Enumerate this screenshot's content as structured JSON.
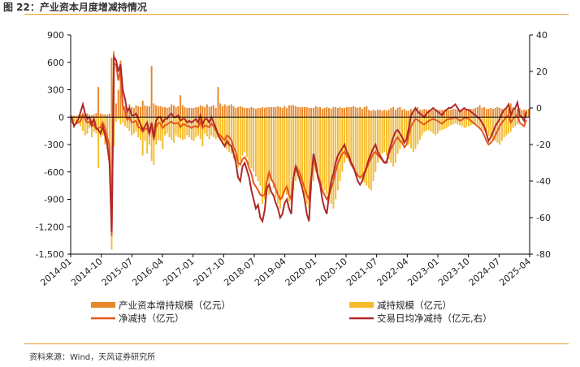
{
  "title": "图 22：产业资本月度增减持情况",
  "source": "资料来源：Wind，天风证券研究所",
  "colors": {
    "increase_bar": "#e8872a",
    "decrease_bar": "#f5bb2a",
    "net_line": "#e4571e",
    "daily_line": "#b0282a",
    "rule": "#e89a2a"
  },
  "chart_data": {
    "type": "bar",
    "x_tick_labels": [
      "2014-01",
      "2014-10",
      "2015-07",
      "2016-04",
      "2017-01",
      "2017-10",
      "2018-07",
      "2019-04",
      "2020-01",
      "2020-10",
      "2021-07",
      "2022-04",
      "2023-01",
      "2023-10",
      "2024-07",
      "2025-04"
    ],
    "y_left": {
      "lim": [
        -1500,
        900
      ],
      "ticks": [
        "900",
        "600",
        "300",
        "0",
        "-300",
        "-600",
        "-900",
        "-1,200",
        "-1,500"
      ]
    },
    "y_right": {
      "lim": [
        -80,
        40
      ],
      "ticks": [
        "40",
        "20",
        "0",
        "-20",
        "-40",
        "-60",
        "-80"
      ]
    },
    "legend": [
      "产业资本增持规模（亿元）",
      "减持规模（亿元）",
      "净减持（亿元）",
      "交易日均净减持（亿元,右）"
    ],
    "series": [
      {
        "name": "产业资本增持规模（亿元）",
        "axis": "left",
        "values": [
          20,
          15,
          15,
          20,
          25,
          15,
          35,
          40,
          25,
          20,
          30,
          45,
          330,
          40,
          30,
          30,
          25,
          40,
          650,
          720,
          150,
          300,
          620,
          160,
          120,
          100,
          140,
          110,
          100,
          130,
          120,
          110,
          180,
          130,
          120,
          120,
          560,
          150,
          130,
          120,
          120,
          110,
          110,
          100,
          110,
          140,
          130,
          110,
          120,
          240,
          130,
          110,
          100,
          100,
          100,
          100,
          110,
          110,
          130,
          120,
          110,
          140,
          110,
          120,
          130,
          100,
          330,
          150,
          120,
          140,
          120,
          130,
          140,
          120,
          100,
          110,
          120,
          110,
          100,
          100,
          100,
          110,
          100,
          90,
          100,
          100,
          110,
          100,
          110,
          110,
          110,
          110,
          110,
          120,
          110,
          100,
          120,
          100,
          130,
          130,
          130,
          120,
          110,
          110,
          110,
          110,
          110,
          100,
          100,
          100,
          120,
          110,
          110,
          90,
          100,
          110,
          100,
          90,
          110,
          110,
          100,
          110,
          100,
          100,
          110,
          110,
          110,
          120,
          110,
          100,
          110,
          90,
          110,
          120,
          80,
          70,
          80,
          70,
          80,
          80,
          70,
          80,
          70,
          80,
          100,
          110,
          80,
          100,
          110,
          80,
          90,
          70,
          70,
          90,
          80,
          80,
          110,
          80,
          80,
          90,
          80,
          80,
          80,
          80,
          80,
          80,
          80,
          80,
          80,
          80,
          80,
          80,
          90,
          90,
          80,
          80,
          80,
          80,
          80,
          80,
          90,
          90,
          100,
          110,
          130,
          100,
          110,
          90,
          90,
          100,
          90,
          100,
          110,
          100,
          90,
          90,
          100,
          90,
          150,
          110,
          90,
          90,
          100,
          80,
          80,
          80,
          90
        ]
      },
      {
        "name": "减持规模（亿元）",
        "axis": "left",
        "values": [
          -60,
          -50,
          -80,
          -60,
          -100,
          -150,
          -200,
          -180,
          -120,
          -220,
          -160,
          -180,
          -560,
          -220,
          -200,
          -300,
          -350,
          -420,
          -1450,
          -320,
          -50,
          -20,
          -80,
          -60,
          -100,
          -120,
          -150,
          -200,
          -180,
          -160,
          -220,
          -250,
          -420,
          -260,
          -400,
          -300,
          -480,
          -520,
          -300,
          -250,
          -260,
          -350,
          -200,
          -180,
          -220,
          -250,
          -280,
          -200,
          -220,
          -230,
          -250,
          -240,
          -200,
          -220,
          -250,
          -260,
          -220,
          -200,
          -240,
          -320,
          -180,
          -210,
          -240,
          -200,
          -220,
          -240,
          -220,
          -260,
          -300,
          -320,
          -350,
          -380,
          -400,
          -450,
          -500,
          -550,
          -480,
          -420,
          -380,
          -440,
          -520,
          -560,
          -600,
          -650,
          -700,
          -750,
          -950,
          -900,
          -800,
          -850,
          -700,
          -780,
          -880,
          -950,
          -1000,
          -900,
          -800,
          -850,
          -920,
          -960,
          -800,
          -700,
          -650,
          -700,
          -780,
          -880,
          -950,
          -1000,
          -800,
          -700,
          -600,
          -650,
          -700,
          -750,
          -800,
          -850,
          -900,
          -950,
          -1000,
          -900,
          -800,
          -700,
          -600,
          -500,
          -450,
          -480,
          -520,
          -560,
          -600,
          -640,
          -680,
          -700,
          -720,
          -750,
          -780,
          -800,
          -700,
          -600,
          -500,
          -450,
          -400,
          -380,
          -420,
          -460,
          -500,
          -540,
          -500,
          -400,
          -350,
          -300,
          -280,
          -260,
          -300,
          -340,
          -380,
          -350,
          -300,
          -250,
          -200,
          -160,
          -150,
          -140,
          -160,
          -180,
          -200,
          -180,
          -150,
          -140,
          -130,
          -120,
          -100,
          -90,
          -80,
          -70,
          -80,
          -90,
          -100,
          -120,
          -110,
          -100,
          -90,
          -80,
          -70,
          -80,
          -100,
          -130,
          -150,
          -180,
          -200,
          -220,
          -250,
          -260,
          -280,
          -300,
          -260,
          -220,
          -200,
          -180,
          -160,
          -120,
          -100,
          -80
        ]
      },
      {
        "name": "净减持（亿元）",
        "axis": "left",
        "values": [
          -50,
          -80,
          -70,
          -60,
          -40,
          30,
          -20,
          -60,
          -50,
          -100,
          -80,
          -130,
          -120,
          -110,
          -60,
          -120,
          -220,
          -320,
          -1300,
          590,
          570,
          400,
          540,
          120,
          70,
          -30,
          0,
          -60,
          -50,
          -40,
          -110,
          -120,
          -160,
          -130,
          -120,
          -190,
          -80,
          -250,
          -110,
          -60,
          -70,
          -120,
          -90,
          -80,
          -60,
          -50,
          -70,
          -70,
          -60,
          -110,
          -80,
          -80,
          -100,
          -100,
          -120,
          -100,
          -100,
          -110,
          -50,
          -120,
          -90,
          -100,
          -110,
          -70,
          -100,
          -150,
          -180,
          -200,
          -230,
          -250,
          -200,
          -220,
          -250,
          -330,
          -380,
          -500,
          -520,
          -460,
          -440,
          -480,
          -560,
          -620,
          -720,
          -760,
          -800,
          -850,
          -860,
          -850,
          -700,
          -600,
          -680,
          -720,
          -780,
          -850,
          -900,
          -870,
          -800,
          -760,
          -850,
          -900,
          -660,
          -530,
          -580,
          -620,
          -700,
          -780,
          -850,
          -900,
          -650,
          -450,
          -550,
          -640,
          -700,
          -800,
          -850,
          -900,
          -850,
          -780,
          -700,
          -600,
          -500,
          -450,
          -400,
          -380,
          -420,
          -450,
          -520,
          -560,
          -600,
          -640,
          -660,
          -640,
          -600,
          -560,
          -500,
          -450,
          -400,
          -380,
          -420,
          -440,
          -470,
          -500,
          -480,
          -400,
          -350,
          -300,
          -250,
          -220,
          -260,
          -280,
          -330,
          -300,
          -200,
          -100,
          -60,
          -20,
          -30,
          -50,
          -70,
          -80,
          -60,
          -40,
          -30,
          -20,
          -30,
          -40,
          -60,
          -70,
          -50,
          -30,
          -20,
          -20,
          -10,
          0,
          -20,
          -40,
          -30,
          -10,
          -10,
          -20,
          -40,
          -60,
          -80,
          -100,
          -120,
          -150,
          -200,
          -260,
          -300,
          -280,
          -250,
          -200,
          -150,
          -100,
          -60,
          -30,
          0,
          20,
          -60,
          -20,
          0,
          30,
          -60,
          -80,
          -100,
          -30
        ]
      },
      {
        "name": "交易日均净减持（亿元,右）",
        "axis": "right",
        "values": [
          -5,
          -10,
          -8,
          -6,
          -2,
          2,
          -3,
          -6,
          -5,
          -9,
          -6,
          -11,
          -12,
          -14,
          -10,
          -15,
          -20,
          -30,
          -68,
          28,
          26,
          20,
          24,
          10,
          5,
          -2,
          0,
          -4,
          -4,
          -3,
          -6,
          -9,
          -12,
          -10,
          -8,
          -14,
          -8,
          -16,
          -7,
          -5,
          -5,
          -8,
          -6,
          -6,
          -4,
          -3,
          -5,
          -5,
          -4,
          -7,
          -6,
          -6,
          -8,
          -7,
          -8,
          -7,
          -6,
          -8,
          -4,
          -9,
          -6,
          -6,
          -8,
          -5,
          -8,
          -11,
          -15,
          -17,
          -19,
          -21,
          -18,
          -20,
          -21,
          -25,
          -30,
          -38,
          -40,
          -32,
          -30,
          -34,
          -38,
          -45,
          -50,
          -55,
          -53,
          -60,
          -62,
          -56,
          -44,
          -42,
          -46,
          -48,
          -52,
          -55,
          -60,
          -58,
          -52,
          -50,
          -55,
          -58,
          -38,
          -32,
          -36,
          -40,
          -44,
          -50,
          -58,
          -62,
          -40,
          -25,
          -30,
          -38,
          -42,
          -50,
          -55,
          -58,
          -48,
          -40,
          -36,
          -30,
          -26,
          -24,
          -22,
          -20,
          -24,
          -26,
          -30,
          -32,
          -36,
          -40,
          -42,
          -40,
          -36,
          -32,
          -28,
          -25,
          -22,
          -20,
          -24,
          -26,
          -28,
          -30,
          -30,
          -24,
          -20,
          -16,
          -13,
          -12,
          -14,
          -16,
          -19,
          -17,
          -11,
          -4,
          -2,
          0,
          -2,
          -3,
          -4,
          -5,
          -3,
          -2,
          -1,
          0,
          -1,
          -2,
          -3,
          -4,
          -2,
          -1,
          0,
          0,
          1,
          2,
          0,
          -2,
          -1,
          0,
          -1,
          -1,
          -2,
          -3,
          -4,
          -5,
          -6,
          -8,
          -10,
          -14,
          -18,
          -16,
          -13,
          -10,
          -8,
          -6,
          -3,
          -1,
          0,
          2,
          -4,
          -1,
          0,
          3,
          -4,
          -5,
          -7,
          -2
        ]
      }
    ]
  }
}
